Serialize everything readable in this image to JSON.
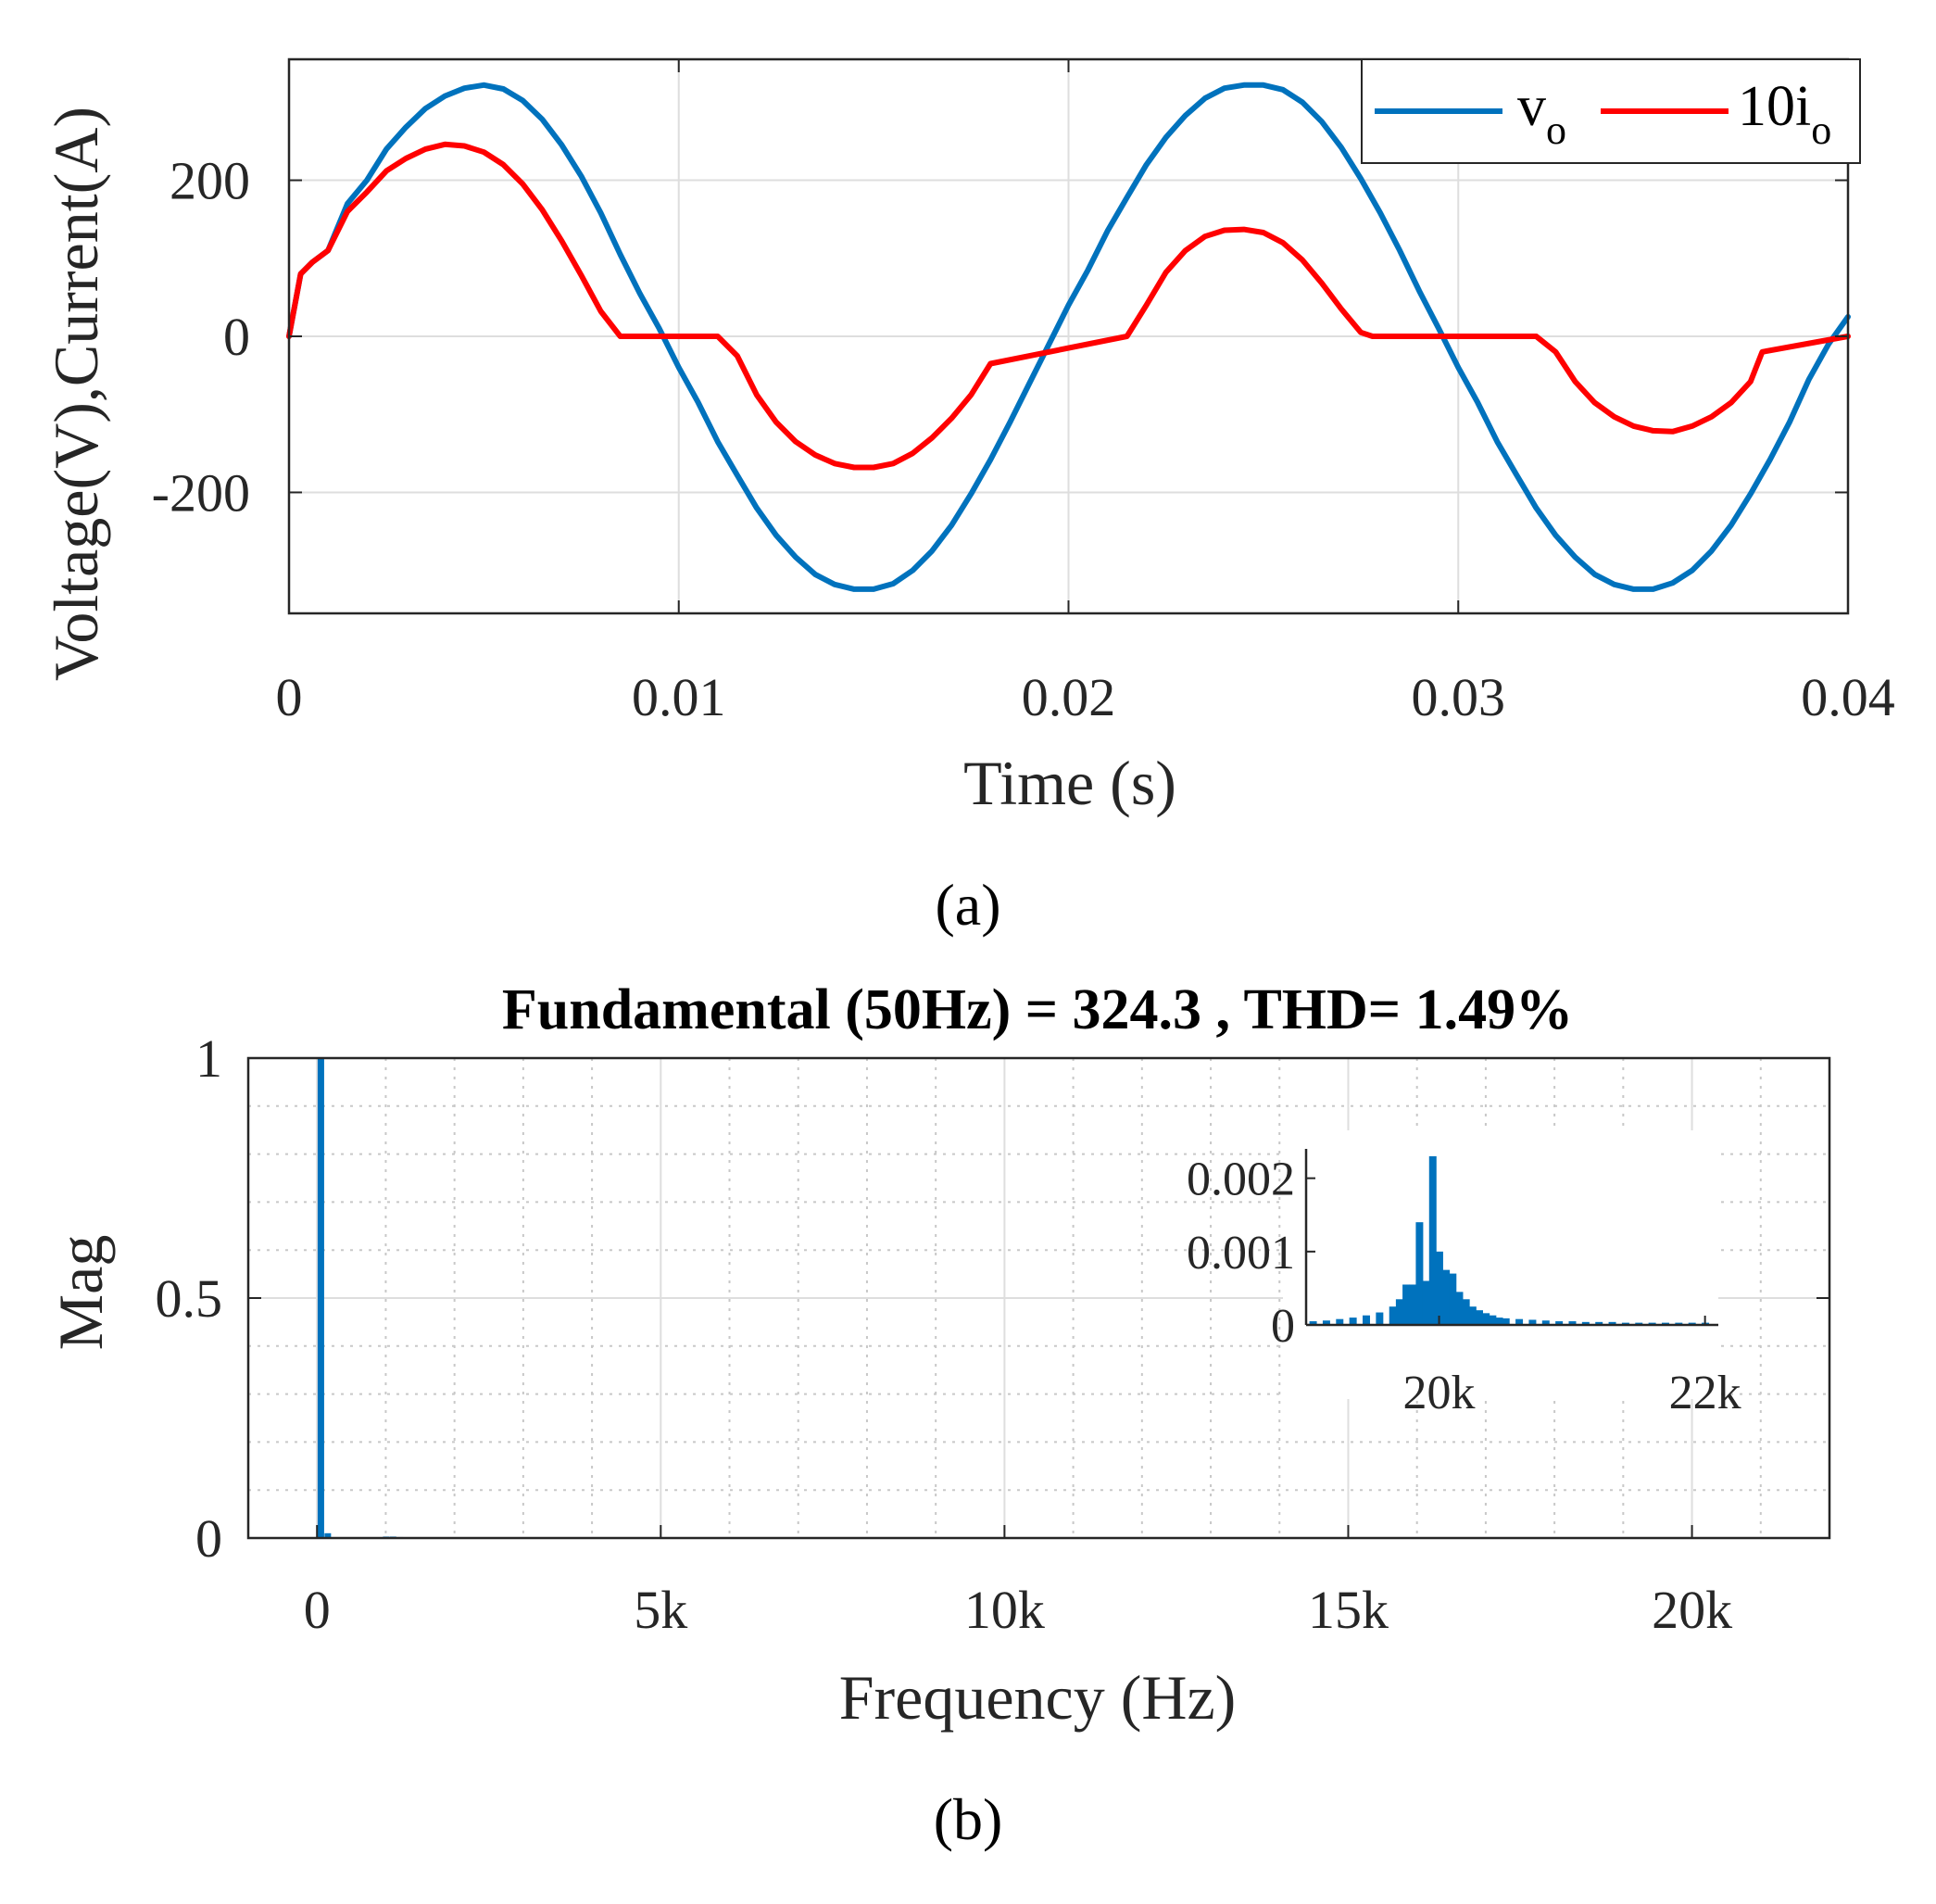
{
  "chart_data": [
    {
      "id": "a",
      "type": "line",
      "caption": "(a)",
      "xlabel": "Time (s)",
      "ylabel": "Voltage(V),Current(A)",
      "xlim": [
        0,
        0.04
      ],
      "ylim": [
        -355,
        355
      ],
      "xticks": [
        0,
        0.01,
        0.02,
        0.03,
        0.04
      ],
      "xtick_labels": [
        "0",
        "0.01",
        "0.02",
        "0.03",
        "0.04"
      ],
      "yticks": [
        200,
        0,
        -200
      ],
      "ytick_labels": [
        "200",
        "0",
        "-200"
      ],
      "grid": true,
      "legend_position": "top-right",
      "series": [
        {
          "name": "v_o",
          "legend_main": "v",
          "legend_sub": "o",
          "color": "#0072BD",
          "x": [
            0,
            0.0003,
            0.0006,
            0.001,
            0.0015,
            0.002,
            0.0025,
            0.003,
            0.0035,
            0.004,
            0.0045,
            0.005,
            0.0055,
            0.006,
            0.0065,
            0.007,
            0.0075,
            0.008,
            0.0085,
            0.009,
            0.0095,
            0.01,
            0.0105,
            0.011,
            0.0115,
            0.012,
            0.0125,
            0.013,
            0.0135,
            0.014,
            0.0145,
            0.015,
            0.0155,
            0.016,
            0.0165,
            0.017,
            0.0175,
            0.018,
            0.0185,
            0.019,
            0.0195,
            0.02,
            0.0205,
            0.021,
            0.0215,
            0.022,
            0.0225,
            0.023,
            0.0235,
            0.024,
            0.0245,
            0.025,
            0.0255,
            0.026,
            0.0265,
            0.027,
            0.0275,
            0.028,
            0.0285,
            0.029,
            0.0295,
            0.03,
            0.0305,
            0.031,
            0.0315,
            0.032,
            0.0325,
            0.033,
            0.0335,
            0.034,
            0.0345,
            0.035,
            0.0355,
            0.036,
            0.0365,
            0.037,
            0.0375,
            0.038,
            0.0385,
            0.039,
            0.0395,
            0.04
          ],
          "y": [
            0,
            80,
            95,
            110,
            170,
            200,
            240,
            268,
            292,
            308,
            318,
            322,
            317,
            302,
            278,
            245,
            205,
            158,
            105,
            55,
            10,
            -40,
            -85,
            -135,
            -178,
            -220,
            -255,
            -283,
            -305,
            -318,
            -324,
            -324,
            -317,
            -300,
            -275,
            -242,
            -202,
            -158,
            -110,
            -60,
            -10,
            40,
            85,
            135,
            178,
            220,
            255,
            283,
            305,
            318,
            322,
            322,
            316,
            300,
            275,
            242,
            202,
            158,
            110,
            58,
            10,
            -40,
            -85,
            -135,
            -178,
            -220,
            -255,
            -283,
            -305,
            -318,
            -324,
            -324,
            -316,
            -300,
            -275,
            -242,
            -202,
            -158,
            -110,
            -55,
            -10,
            25
          ]
        },
        {
          "name": "10i_o",
          "legend_main": "10i",
          "legend_sub": "o",
          "color": "#FF0000",
          "x": [
            0,
            0.0003,
            0.0006,
            0.001,
            0.0015,
            0.002,
            0.0025,
            0.003,
            0.0035,
            0.004,
            0.0045,
            0.005,
            0.0055,
            0.006,
            0.0065,
            0.007,
            0.0075,
            0.008,
            0.0085,
            0.011,
            0.0115,
            0.012,
            0.0125,
            0.013,
            0.0135,
            0.014,
            0.0145,
            0.015,
            0.0155,
            0.016,
            0.0165,
            0.017,
            0.0175,
            0.018,
            0.0215,
            0.022,
            0.0225,
            0.023,
            0.0235,
            0.024,
            0.0245,
            0.025,
            0.0255,
            0.026,
            0.0265,
            0.027,
            0.0275,
            0.0278,
            0.032,
            0.0325,
            0.033,
            0.0335,
            0.034,
            0.0345,
            0.035,
            0.0355,
            0.036,
            0.0365,
            0.037,
            0.0375,
            0.0378,
            0.04
          ],
          "y": [
            0,
            80,
            95,
            110,
            160,
            185,
            212,
            228,
            240,
            246,
            244,
            236,
            220,
            195,
            162,
            122,
            78,
            32,
            0,
            0,
            -25,
            -75,
            -110,
            -135,
            -152,
            -163,
            -168,
            -168,
            -163,
            -150,
            -130,
            -105,
            -75,
            -35,
            0,
            40,
            82,
            110,
            128,
            136,
            137,
            133,
            120,
            98,
            68,
            35,
            5,
            0,
            0,
            -20,
            -58,
            -85,
            -103,
            -115,
            -121,
            -122,
            -115,
            -103,
            -85,
            -58,
            -20,
            0
          ]
        }
      ]
    },
    {
      "id": "b",
      "type": "bar",
      "caption": "(b)",
      "title": "Fundamental (50Hz) = 324.3 , THD= 1.49%",
      "xlabel": "Frequency (Hz)",
      "ylabel": "Mag",
      "xlim": [
        -1000,
        22000
      ],
      "ylim": [
        0,
        1
      ],
      "xticks": [
        0,
        5000,
        10000,
        15000,
        20000
      ],
      "xtick_labels": [
        "0",
        "5k",
        "10k",
        "15k",
        "20k"
      ],
      "yticks": [
        1,
        0.5,
        0
      ],
      "ytick_labels": [
        "1",
        "0.5",
        "0"
      ],
      "grid": true,
      "color": "#0072BD",
      "x": [
        50,
        150,
        1000,
        1100,
        1200
      ],
      "values": [
        1.0,
        0.01,
        0.003,
        0.003,
        0.002
      ],
      "inset": {
        "type": "bar",
        "xlim": [
          19000,
          22100
        ],
        "ylim": [
          0,
          0.0024
        ],
        "xticks": [
          20000,
          22000
        ],
        "xtick_labels": [
          "20k",
          "22k"
        ],
        "yticks": [
          0.002,
          0.001,
          0
        ],
        "ytick_labels": [
          "0.002",
          "0.001",
          "0"
        ],
        "x": [
          19050,
          19150,
          19250,
          19350,
          19450,
          19550,
          19650,
          19700,
          19750,
          19800,
          19850,
          19900,
          19950,
          20000,
          20050,
          20100,
          20150,
          20200,
          20250,
          20300,
          20350,
          20400,
          20450,
          20500,
          20600,
          20700,
          20800,
          20900,
          21000,
          21100,
          21200,
          21300,
          21400,
          21500,
          21600,
          21700,
          21800,
          21900,
          22000
        ],
        "values": [
          5e-05,
          6e-05,
          8e-05,
          0.0001,
          0.00013,
          0.00017,
          0.00025,
          0.00035,
          0.00055,
          0.00055,
          0.0014,
          0.0006,
          0.0023,
          0.001,
          0.00075,
          0.0007,
          0.00045,
          0.00035,
          0.00025,
          0.0002,
          0.00016,
          0.00013,
          0.0001,
          9e-05,
          8e-05,
          7e-05,
          6e-05,
          5e-05,
          5e-05,
          4e-05,
          4e-05,
          4e-05,
          3e-05,
          3e-05,
          3e-05,
          3e-05,
          3e-05,
          3e-05,
          3e-05
        ]
      }
    }
  ]
}
